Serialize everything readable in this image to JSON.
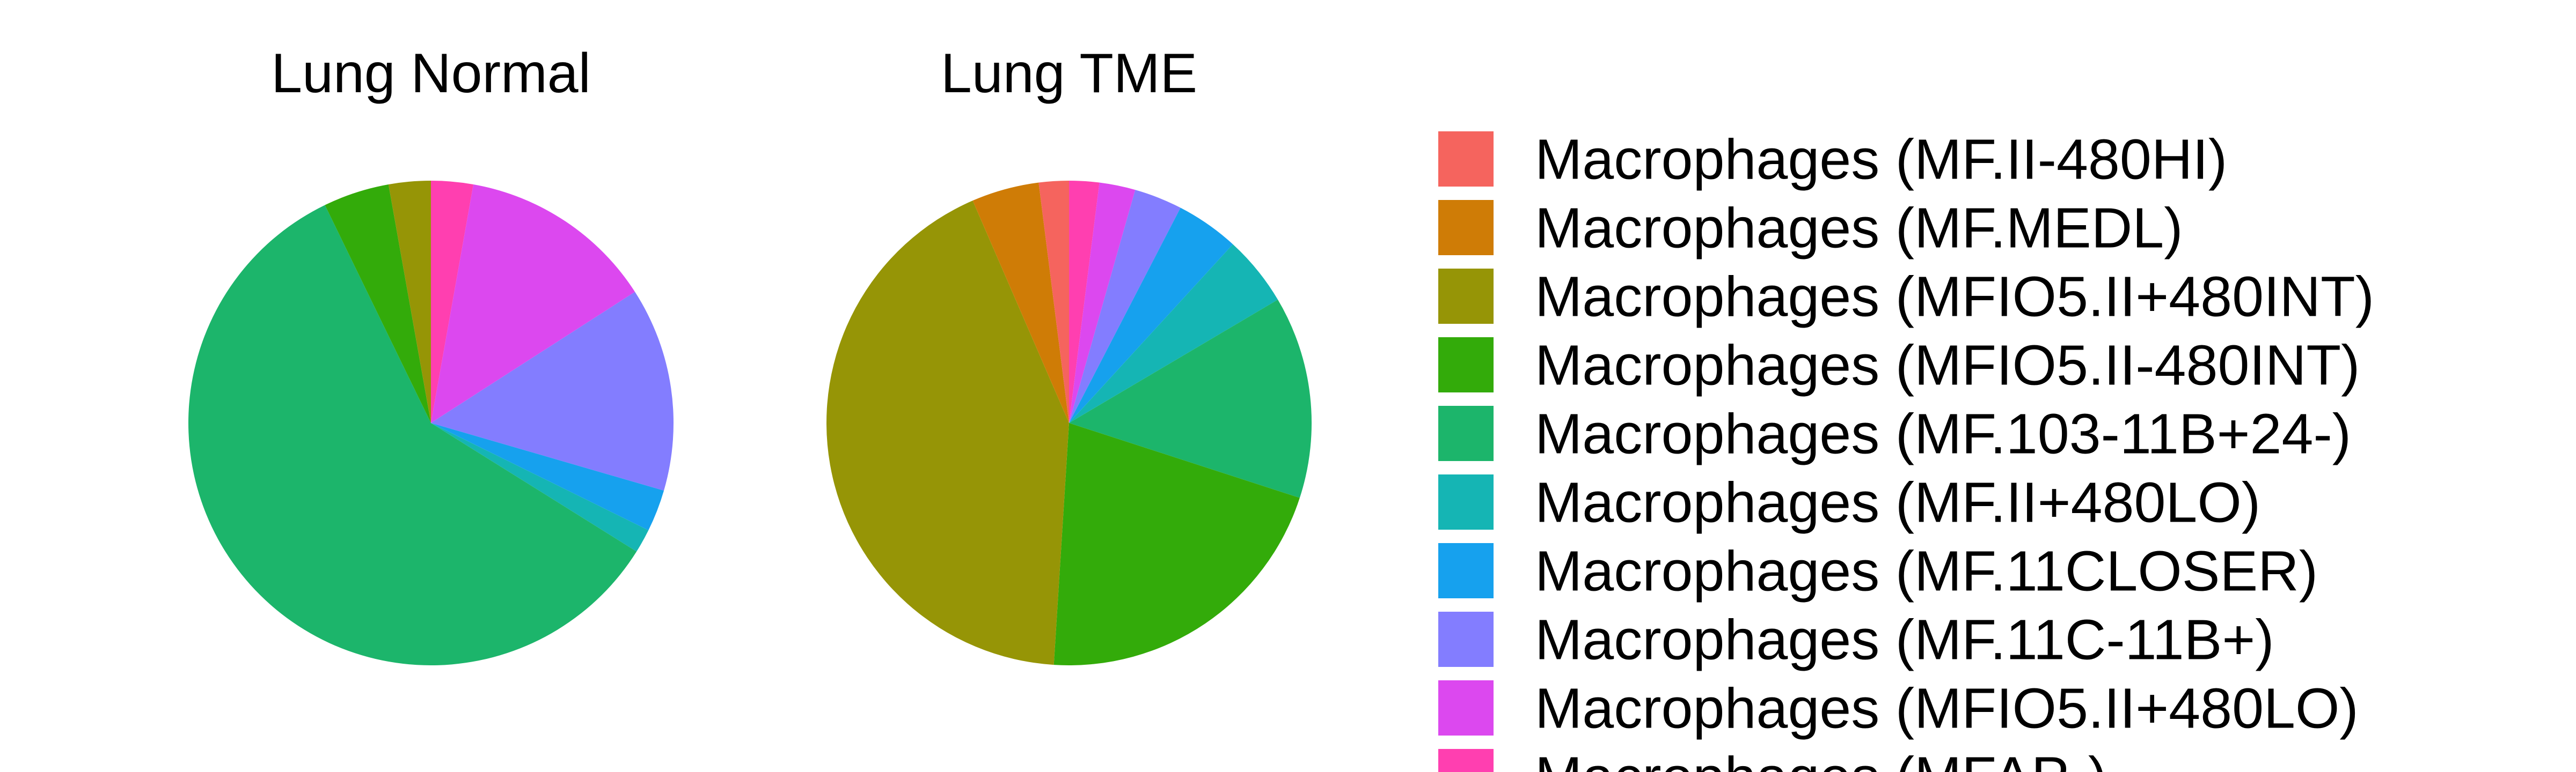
{
  "chart_data": [
    {
      "type": "pie",
      "title": "Lung Normal",
      "slices": [
        {
          "label": "Macrophages (MFAP-)",
          "value": 2.8,
          "color": "#FF3FB0"
        },
        {
          "label": "Macrophages (MFIO5.II+480LO)",
          "value": 13.1,
          "color": "#DC48EF"
        },
        {
          "label": "Macrophages (MF.11C-11B+)",
          "value": 13.6,
          "color": "#837DFF"
        },
        {
          "label": "Macrophages (MF.11CLOSER)",
          "value": 2.8,
          "color": "#16A1EE"
        },
        {
          "label": "Macrophages (MF.II+480LO)",
          "value": 1.6,
          "color": "#15B5B4"
        },
        {
          "label": "Macrophages (MF.103-11B+24-)",
          "value": 58.9,
          "color": "#1CB56B"
        },
        {
          "label": "Macrophages (MFIO5.II-480INT)",
          "value": 4.4,
          "color": "#33AB0A"
        },
        {
          "label": "Macrophages (MFIO5.II+480INT)",
          "value": 2.8,
          "color": "#969506"
        }
      ]
    },
    {
      "type": "pie",
      "title": "Lung TME",
      "slices": [
        {
          "label": "Macrophages (MFAP-)",
          "value": 2.0,
          "color": "#FF3FB0"
        },
        {
          "label": "Macrophages (MFIO5.II+480LO)",
          "value": 2.4,
          "color": "#DC48EF"
        },
        {
          "label": "Macrophages (MF.11C-11B+)",
          "value": 3.2,
          "color": "#837DFF"
        },
        {
          "label": "Macrophages (MF.11CLOSER)",
          "value": 4.2,
          "color": "#16A1EE"
        },
        {
          "label": "Macrophages (MF.II+480LO)",
          "value": 4.7,
          "color": "#15B5B4"
        },
        {
          "label": "Macrophages (MF.103-11B+24-)",
          "value": 13.5,
          "color": "#1CB56B"
        },
        {
          "label": "Macrophages (MFIO5.II-480INT)",
          "value": 21.0,
          "color": "#33AB0A"
        },
        {
          "label": "Macrophages (MFIO5.II+480INT)",
          "value": 42.5,
          "color": "#969506"
        },
        {
          "label": "Macrophages (MF.MEDL)",
          "value": 4.5,
          "color": "#CF7C06"
        },
        {
          "label": "Macrophages (MF.II-480HI)",
          "value": 2.0,
          "color": "#F5645E"
        }
      ]
    }
  ],
  "legend": {
    "items": [
      {
        "label": "Macrophages (MF.II-480HI)",
        "color": "#F5645E"
      },
      {
        "label": "Macrophages (MF.MEDL)",
        "color": "#CF7C06"
      },
      {
        "label": "Macrophages (MFIO5.II+480INT)",
        "color": "#969506"
      },
      {
        "label": "Macrophages (MFIO5.II-480INT)",
        "color": "#33AB0A"
      },
      {
        "label": "Macrophages (MF.103-11B+24-)",
        "color": "#1CB56B"
      },
      {
        "label": "Macrophages (MF.II+480LO)",
        "color": "#15B5B4"
      },
      {
        "label": "Macrophages (MF.11CLOSER)",
        "color": "#16A1EE"
      },
      {
        "label": "Macrophages (MF.11C-11B+)",
        "color": "#837DFF"
      },
      {
        "label": "Macrophages (MFIO5.II+480LO)",
        "color": "#DC48EF"
      },
      {
        "label": "Macrophages (MFAP-)",
        "color": "#FF3FB0"
      }
    ]
  }
}
